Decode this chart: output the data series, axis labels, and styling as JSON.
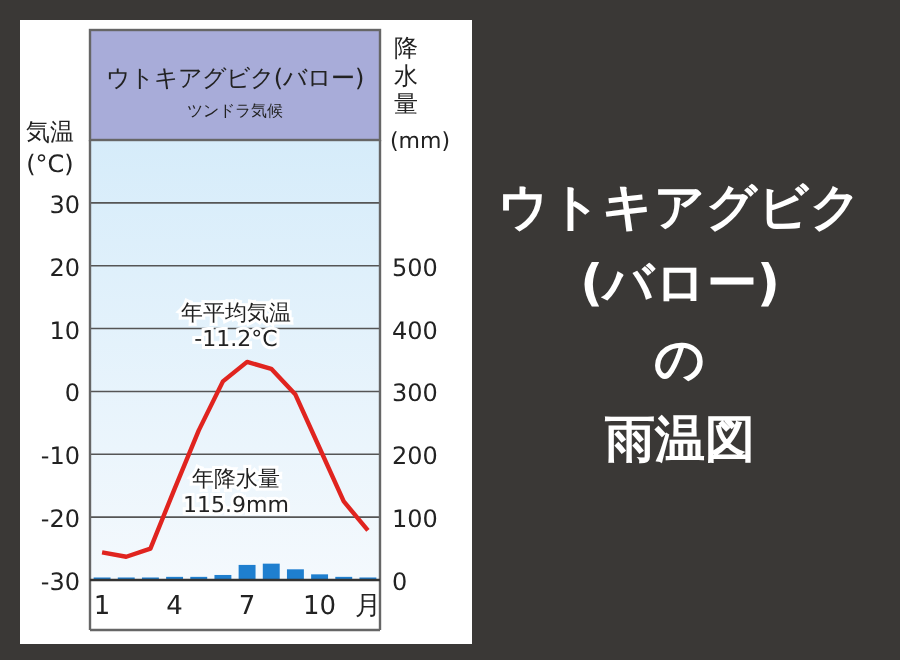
{
  "chart_data": {
    "type": "line",
    "title": "ウトキアグビク(バロー)",
    "subtitle": "ツンドラ気候",
    "ylabel": "気温\n(°C)",
    "y2label": "降水量\n(mm)",
    "xlabel": "月",
    "categories": [
      "1",
      null,
      null,
      "4",
      null,
      null,
      "7",
      null,
      null,
      "10",
      null,
      null
    ],
    "series": [
      {
        "type": "bar",
        "axis": "y2",
        "color": "#1f7fcf",
        "values": [
          4,
          4,
          4,
          5,
          5,
          8,
          24,
          26,
          17,
          9,
          5,
          4
        ]
      },
      {
        "axis": "y",
        "color": "#e0241f",
        "values": [
          -25.6,
          -26.3,
          -25.0,
          -15.5,
          -6.2,
          1.6,
          4.7,
          3.6,
          -0.5,
          -9.0,
          -17.5,
          -22.1
        ]
      }
    ],
    "ylim": [
      -30,
      40
    ],
    "yticks": [
      -30,
      -20,
      -10,
      0,
      10,
      20,
      30
    ],
    "y2lim": [
      0,
      700
    ],
    "y2ticks": [
      0,
      100,
      200,
      300,
      400,
      500
    ],
    "grid": "y",
    "marker": "none",
    "annotations": [
      "年平均気温\n-11.2°C",
      "年降水量\n115.9mm",
      "ウトキアグビク",
      "(バロー)",
      "の",
      "雨温図"
    ]
  }
}
